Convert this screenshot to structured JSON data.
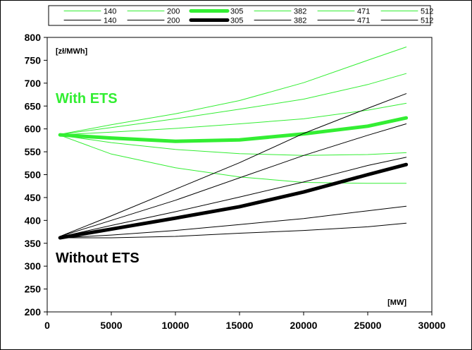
{
  "chart_data": {
    "type": "line",
    "title": "",
    "xlabel": "",
    "ylabel": "",
    "x_unit": "[MW]",
    "y_unit": "[zł/MWh]",
    "xlim": [
      0,
      30000
    ],
    "ylim": [
      200,
      800
    ],
    "x_ticks": [
      0,
      5000,
      10000,
      15000,
      20000,
      25000,
      30000
    ],
    "y_ticks": [
      200,
      250,
      300,
      350,
      400,
      450,
      500,
      550,
      600,
      650,
      700,
      750,
      800
    ],
    "grid": false,
    "legend_placement": "top",
    "annotations": [
      {
        "text": "With ETS",
        "color": "#33ee33"
      },
      {
        "text": "Without ETS",
        "color": "#000000"
      }
    ],
    "colors": {
      "with_ets": "#33ee33",
      "without_ets": "#000000"
    },
    "x": [
      1000,
      5000,
      10000,
      15000,
      20000,
      25000,
      28000
    ],
    "series": [
      {
        "name": "140",
        "group": "with_ets",
        "bold": false,
        "values": [
          586,
          545,
          515,
          495,
          483,
          481,
          481
        ]
      },
      {
        "name": "200",
        "group": "with_ets",
        "bold": false,
        "values": [
          586,
          570,
          555,
          546,
          542,
          544,
          548
        ]
      },
      {
        "name": "305",
        "group": "with_ets",
        "bold": true,
        "values": [
          587,
          580,
          573,
          576,
          589,
          606,
          624
        ]
      },
      {
        "name": "382",
        "group": "with_ets",
        "bold": false,
        "values": [
          587,
          593,
          601,
          611,
          622,
          641,
          656
        ]
      },
      {
        "name": "471",
        "group": "with_ets",
        "bold": false,
        "values": [
          588,
          603,
          622,
          643,
          665,
          697,
          721
        ]
      },
      {
        "name": "512",
        "group": "with_ets",
        "bold": false,
        "values": [
          588,
          609,
          633,
          662,
          701,
          750,
          779
        ]
      },
      {
        "name": "140",
        "group": "without_ets",
        "bold": false,
        "values": [
          362,
          362,
          365,
          372,
          378,
          386,
          394
        ]
      },
      {
        "name": "200",
        "group": "without_ets",
        "bold": false,
        "values": [
          362,
          368,
          378,
          391,
          404,
          421,
          431
        ]
      },
      {
        "name": "305",
        "group": "without_ets",
        "bold": true,
        "values": [
          362,
          381,
          405,
          430,
          462,
          500,
          522
        ]
      },
      {
        "name": "382",
        "group": "without_ets",
        "bold": false,
        "values": [
          364,
          389,
          419,
          451,
          484,
          520,
          538
        ]
      },
      {
        "name": "471",
        "group": "without_ets",
        "bold": false,
        "values": [
          365,
          400,
          444,
          493,
          542,
          586,
          611
        ]
      },
      {
        "name": "512",
        "group": "without_ets",
        "bold": false,
        "values": [
          365,
          410,
          468,
          526,
          590,
          645,
          677
        ]
      }
    ]
  }
}
